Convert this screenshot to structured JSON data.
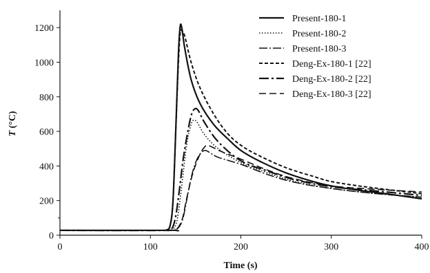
{
  "chart_data": {
    "type": "line",
    "title": "",
    "xlabel": "Time (s)",
    "ylabel_italic": "T",
    "ylabel_rest": " (°C)",
    "xlim": [
      0,
      400
    ],
    "ylim": [
      0,
      1300
    ],
    "xticks": [
      0,
      100,
      200,
      300,
      400
    ],
    "yticks": [
      0,
      200,
      400,
      600,
      800,
      1000,
      1200
    ],
    "grid": false,
    "legend_position": "top-right",
    "series": [
      {
        "name": "Present-180-1",
        "dash": "solid",
        "width": 2.2,
        "points": [
          [
            0,
            28
          ],
          [
            110,
            28
          ],
          [
            118,
            30
          ],
          [
            122,
            60
          ],
          [
            125,
            200
          ],
          [
            128,
            600
          ],
          [
            131,
            1050
          ],
          [
            133,
            1210
          ],
          [
            135,
            1190
          ],
          [
            138,
            1080
          ],
          [
            145,
            900
          ],
          [
            155,
            760
          ],
          [
            170,
            640
          ],
          [
            185,
            560
          ],
          [
            200,
            490
          ],
          [
            220,
            430
          ],
          [
            250,
            360
          ],
          [
            280,
            310
          ],
          [
            300,
            285
          ],
          [
            330,
            260
          ],
          [
            360,
            240
          ],
          [
            400,
            210
          ]
        ]
      },
      {
        "name": "Present-180-2",
        "dash": "1.5,2.5",
        "width": 1.6,
        "points": [
          [
            0,
            28
          ],
          [
            115,
            28
          ],
          [
            125,
            35
          ],
          [
            130,
            100
          ],
          [
            135,
            300
          ],
          [
            140,
            520
          ],
          [
            145,
            640
          ],
          [
            148,
            665
          ],
          [
            152,
            650
          ],
          [
            160,
            580
          ],
          [
            175,
            500
          ],
          [
            200,
            420
          ],
          [
            230,
            360
          ],
          [
            260,
            310
          ],
          [
            300,
            270
          ],
          [
            350,
            240
          ],
          [
            400,
            220
          ]
        ]
      },
      {
        "name": "Present-180-3",
        "dash": "12,3,2,3",
        "width": 1.6,
        "points": [
          [
            0,
            28
          ],
          [
            120,
            28
          ],
          [
            128,
            30
          ],
          [
            135,
            80
          ],
          [
            140,
            200
          ],
          [
            145,
            330
          ],
          [
            150,
            420
          ],
          [
            155,
            470
          ],
          [
            160,
            490
          ],
          [
            165,
            480
          ],
          [
            175,
            450
          ],
          [
            200,
            410
          ],
          [
            230,
            350
          ],
          [
            260,
            305
          ],
          [
            300,
            270
          ],
          [
            350,
            240
          ],
          [
            400,
            220
          ]
        ]
      },
      {
        "name": "Deng-Ex-180-1 [22]",
        "dash": "5,3",
        "width": 2.0,
        "points": [
          [
            0,
            28
          ],
          [
            110,
            28
          ],
          [
            118,
            30
          ],
          [
            122,
            60
          ],
          [
            125,
            200
          ],
          [
            128,
            600
          ],
          [
            131,
            1000
          ],
          [
            133,
            1170
          ],
          [
            135,
            1180
          ],
          [
            138,
            1150
          ],
          [
            145,
            1000
          ],
          [
            155,
            850
          ],
          [
            170,
            700
          ],
          [
            185,
            590
          ],
          [
            200,
            520
          ],
          [
            220,
            460
          ],
          [
            250,
            390
          ],
          [
            280,
            340
          ],
          [
            300,
            310
          ],
          [
            330,
            285
          ],
          [
            360,
            265
          ],
          [
            400,
            240
          ]
        ]
      },
      {
        "name": "Deng-Ex-180-2 [22]",
        "dash": "14,4,3,4",
        "width": 2.2,
        "points": [
          [
            0,
            28
          ],
          [
            118,
            28
          ],
          [
            124,
            40
          ],
          [
            128,
            110
          ],
          [
            132,
            260
          ],
          [
            136,
            430
          ],
          [
            140,
            560
          ],
          [
            145,
            690
          ],
          [
            149,
            730
          ],
          [
            153,
            720
          ],
          [
            160,
            650
          ],
          [
            175,
            540
          ],
          [
            200,
            430
          ],
          [
            230,
            370
          ],
          [
            260,
            320
          ],
          [
            300,
            280
          ],
          [
            350,
            255
          ],
          [
            400,
            230
          ]
        ]
      },
      {
        "name": "Deng-Ex-180-3 [22]",
        "dash": "10,5",
        "width": 1.6,
        "points": [
          [
            0,
            28
          ],
          [
            120,
            28
          ],
          [
            128,
            30
          ],
          [
            135,
            90
          ],
          [
            140,
            210
          ],
          [
            147,
            360
          ],
          [
            155,
            470
          ],
          [
            160,
            510
          ],
          [
            163,
            520
          ],
          [
            168,
            510
          ],
          [
            180,
            480
          ],
          [
            200,
            440
          ],
          [
            230,
            375
          ],
          [
            260,
            325
          ],
          [
            300,
            285
          ],
          [
            350,
            265
          ],
          [
            400,
            250
          ]
        ]
      }
    ]
  }
}
